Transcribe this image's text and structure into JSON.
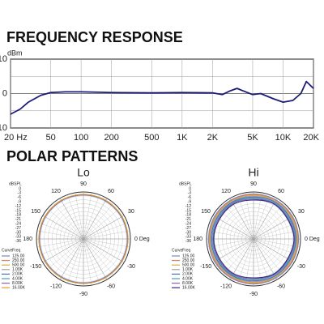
{
  "section_title": "POLAR PATTERNS",
  "chart_data": [
    {
      "type": "line",
      "title": "FREQUENCY RESPONSE",
      "y_label": "dBm",
      "log_x": true,
      "xlim": [
        20,
        20000
      ],
      "xticks": [
        {
          "value": 20,
          "label": "20 Hz"
        },
        50,
        100,
        200,
        500,
        {
          "value": 1000,
          "label": "1K"
        },
        {
          "value": 2000,
          "label": "2K"
        },
        {
          "value": 5000,
          "label": "5K"
        },
        {
          "value": 10000,
          "label": "10K"
        },
        {
          "value": 20000,
          "label": "20K"
        }
      ],
      "ylim": [
        -10,
        10
      ],
      "yticks": [
        10,
        0,
        -10
      ],
      "minor_yticks": [
        5,
        -5
      ],
      "grid": true,
      "x": [
        20,
        25,
        30,
        40,
        50,
        70,
        100,
        200,
        500,
        1000,
        2000,
        2500,
        3000,
        3500,
        4000,
        5000,
        6000,
        8000,
        10000,
        12500,
        15000,
        17000,
        20000
      ],
      "series": [
        {
          "color": "#1c1c78",
          "values": [
            -6,
            -4.5,
            -2.5,
            -0.5,
            0.3,
            0.5,
            0.5,
            0.3,
            0.2,
            0.3,
            0.2,
            -0.3,
            0.8,
            1.5,
            0.8,
            -0.3,
            0,
            -1.5,
            -2.5,
            -2,
            0,
            3.5,
            1.5
          ]
        }
      ]
    },
    {
      "type": "polar",
      "title": "Lo",
      "r_label": "dBSPL",
      "legend_headers": [
        "Curve",
        "Freq"
      ],
      "rlim": [
        -36,
        0
      ],
      "rticks": [
        0,
        -3,
        -6,
        -9,
        -12,
        -15,
        -18,
        -21,
        -24,
        -27,
        -30,
        -33,
        -36
      ],
      "theta": [
        0,
        30,
        60,
        90,
        120,
        150,
        180,
        210,
        240,
        270,
        300,
        330
      ],
      "thetaticks": [
        {
          "value": 0,
          "label": "0 Deg"
        },
        30,
        60,
        90,
        120,
        150,
        180,
        {
          "value": 210,
          "label": "-150"
        },
        {
          "value": 240,
          "label": "-120"
        },
        {
          "value": 270,
          "label": "-90"
        },
        {
          "value": 300,
          "label": "-60"
        },
        {
          "value": 330,
          "label": "-30"
        }
      ],
      "series": [
        {
          "name": "125.00",
          "color": "#7a86c8",
          "values": [
            -2,
            -2,
            -2,
            -2,
            -2,
            -2,
            -2,
            -2,
            -2,
            -2,
            -2,
            -2
          ]
        },
        {
          "name": "250.00",
          "color": "#e07a5a",
          "values": [
            -2,
            -2,
            -2.1,
            -2,
            -2,
            -2.1,
            -2,
            -2,
            -2.1,
            -2,
            -2,
            -2.1
          ]
        },
        {
          "name": "500.00",
          "color": "#d4b040",
          "values": [
            -2,
            -2.1,
            -2,
            -2,
            -2.1,
            -2,
            -2,
            -2.1,
            -2,
            -2,
            -2.1,
            -2
          ]
        },
        {
          "name": "1.00K",
          "color": "#a0a0a0",
          "values": [
            -2.2,
            -2.2,
            -2.2,
            -2.2,
            -2.2,
            -2.2,
            -2.2,
            -2.2,
            -2.2,
            -2.2,
            -2.2,
            -2.2
          ]
        },
        {
          "name": "2.00K",
          "color": "#5070c0",
          "values": [
            -2.3,
            -2.3,
            -2.3,
            -2.3,
            -2.3,
            -2.3,
            -2.3,
            -2.3,
            -2.3,
            -2.3,
            -2.3,
            -2.3
          ]
        },
        {
          "name": "4.00K",
          "color": "#40a0b0",
          "values": [
            -2.1,
            -2.1,
            -2.1,
            -2.1,
            -2.1,
            -2.1,
            -2.1,
            -2.1,
            -2.1,
            -2.1,
            -2.1,
            -2.1
          ]
        },
        {
          "name": "8.00K",
          "color": "#9060b0",
          "values": [
            -2,
            -2,
            -2,
            -2,
            -2,
            -2,
            -2,
            -2,
            -2,
            -2,
            -2,
            -2
          ]
        },
        {
          "name": "16.00K",
          "color": "#e8982c",
          "values": [
            -1.8,
            -1.8,
            -1.8,
            -1.8,
            -1.8,
            -1.8,
            -1.8,
            -1.8,
            -1.8,
            -1.8,
            -1.8,
            -1.8
          ]
        }
      ]
    },
    {
      "type": "polar",
      "title": "Hi",
      "r_label": "dBSPL",
      "legend_headers": [
        "Curve",
        "Freq"
      ],
      "rlim": [
        -36,
        0
      ],
      "rticks": [
        0,
        -3,
        -6,
        -9,
        -12,
        -15,
        -18,
        -21,
        -24,
        -27,
        -30,
        -33,
        -36
      ],
      "theta": [
        0,
        30,
        60,
        90,
        120,
        150,
        180,
        210,
        240,
        270,
        300,
        330
      ],
      "thetaticks": [
        {
          "value": 0,
          "label": "0 Deg"
        },
        30,
        60,
        90,
        120,
        150,
        180,
        {
          "value": 210,
          "label": "-150"
        },
        {
          "value": 240,
          "label": "-120"
        },
        {
          "value": 270,
          "label": "-90"
        },
        {
          "value": 300,
          "label": "-60"
        },
        {
          "value": 330,
          "label": "-30"
        }
      ],
      "series": [
        {
          "name": "125.00",
          "color": "#7a86c8",
          "values": [
            -1.5,
            -1.5,
            -1.5,
            -1.5,
            -1.5,
            -1.5,
            -1.5,
            -1.5,
            -1.5,
            -1.5,
            -1.5,
            -1.5
          ]
        },
        {
          "name": "250.00",
          "color": "#e07a5a",
          "values": [
            -2,
            -2,
            -2.2,
            -2,
            -2,
            -2.2,
            -2,
            -2.2,
            -2,
            -2,
            -2.2,
            -2
          ]
        },
        {
          "name": "500.00",
          "color": "#d4b040",
          "values": [
            -2.5,
            -2.6,
            -2.5,
            -2.7,
            -2.5,
            -2.6,
            -2.5,
            -2.6,
            -2.5,
            -2.7,
            -2.5,
            -2.6
          ]
        },
        {
          "name": "1.00K",
          "color": "#a0a0a0",
          "values": [
            -3,
            -3.2,
            -3,
            -3.3,
            -3,
            -3.2,
            -3,
            -3.2,
            -3,
            -3.3,
            -3,
            -3.2
          ]
        },
        {
          "name": "2.00K",
          "color": "#5070c0",
          "values": [
            -3.5,
            -3.8,
            -3.4,
            -3.9,
            -3.5,
            -3.8,
            -3.6,
            -3.8,
            -3.5,
            -3.9,
            -3.4,
            -3.8
          ]
        },
        {
          "name": "4.00K",
          "color": "#40a0b0",
          "values": [
            -4,
            -4.5,
            -4.2,
            -4.8,
            -4.1,
            -4.6,
            -4.3,
            -4.6,
            -4.1,
            -4.8,
            -4.2,
            -4.5
          ]
        },
        {
          "name": "8.00K",
          "color": "#9060b0",
          "values": [
            -4.5,
            -5.2,
            -4.6,
            -5.5,
            -4.7,
            -5.2,
            -5,
            -5.2,
            -4.7,
            -5.5,
            -4.6,
            -5.2
          ]
        },
        {
          "name": "16.00K",
          "color": "#2c2c80",
          "values": [
            -5,
            -5.8,
            -5,
            -6.2,
            -5.3,
            -5.9,
            -5.5,
            -5.9,
            -5.3,
            -6.2,
            -5,
            -5.8
          ]
        }
      ]
    }
  ]
}
